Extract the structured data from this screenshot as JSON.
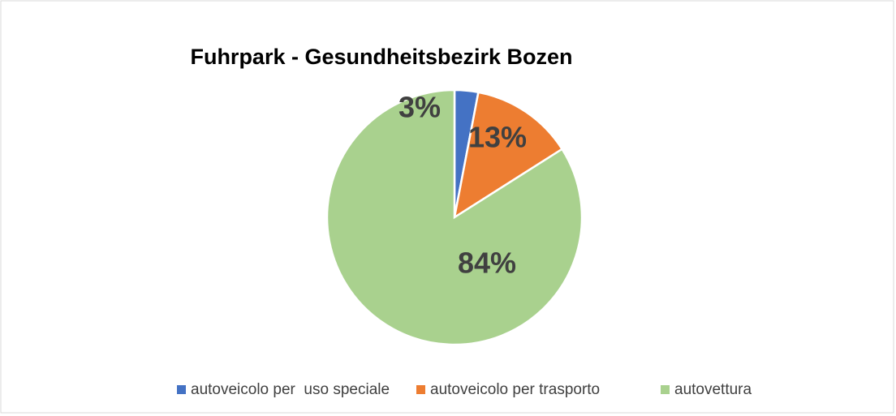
{
  "chart_data": {
    "type": "pie",
    "title": "Fuhrpark - Gesundheitsbezirk Bozen",
    "categories": [
      "autoveicolo per  uso speciale",
      "autoveicolo per trasporto",
      "autovettura"
    ],
    "values": [
      3,
      13,
      84
    ],
    "value_labels": [
      "3%",
      "13%",
      "84%"
    ],
    "colors": [
      "#4472c4",
      "#ed7d31",
      "#a9d18e"
    ],
    "legend": "bottom"
  }
}
